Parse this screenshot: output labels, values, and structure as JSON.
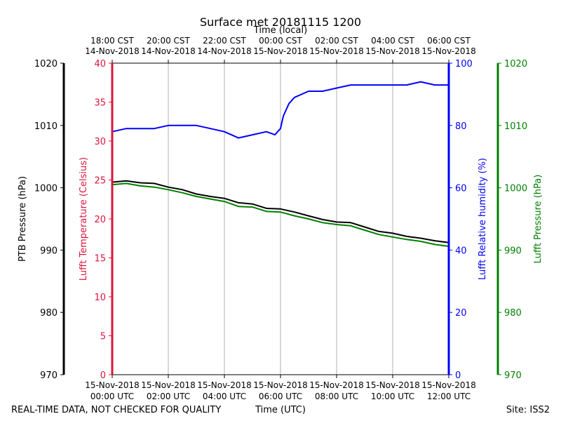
{
  "chart_data": {
    "type": "line",
    "title": "Surface met 20181115 1200",
    "top_axis_label": "Time (local)",
    "xlabel": "Time (UTC)",
    "xlim_hours_utc": [
      0,
      12
    ],
    "bottom_ticks": [
      {
        "hour": 0,
        "date": "15-Nov-2018",
        "time": "00:00 UTC"
      },
      {
        "hour": 2,
        "date": "15-Nov-2018",
        "time": "02:00 UTC"
      },
      {
        "hour": 4,
        "date": "15-Nov-2018",
        "time": "04:00 UTC"
      },
      {
        "hour": 6,
        "date": "15-Nov-2018",
        "time": "06:00 UTC"
      },
      {
        "hour": 8,
        "date": "15-Nov-2018",
        "time": "08:00 UTC"
      },
      {
        "hour": 10,
        "date": "15-Nov-2018",
        "time": "10:00 UTC"
      },
      {
        "hour": 12,
        "date": "15-Nov-2018",
        "time": "12:00 UTC"
      }
    ],
    "top_ticks": [
      {
        "hour": 0,
        "time": "18:00 CST",
        "date": "14-Nov-2018"
      },
      {
        "hour": 2,
        "time": "20:00 CST",
        "date": "14-Nov-2018"
      },
      {
        "hour": 4,
        "time": "22:00 CST",
        "date": "14-Nov-2018"
      },
      {
        "hour": 6,
        "time": "00:00 CST",
        "date": "15-Nov-2018"
      },
      {
        "hour": 8,
        "time": "02:00 CST",
        "date": "15-Nov-2018"
      },
      {
        "hour": 10,
        "time": "04:00 CST",
        "date": "15-Nov-2018"
      },
      {
        "hour": 12,
        "time": "06:00 CST",
        "date": "15-Nov-2018"
      }
    ],
    "axes": {
      "ptb_pressure": {
        "label": "PTB Pressure (hPa)",
        "range": [
          970,
          1020
        ],
        "ticks": [
          970,
          980,
          990,
          1000,
          1010,
          1020
        ],
        "color": "#000000"
      },
      "temperature": {
        "label": "Lufft Temperature (Celsius)",
        "range": [
          0,
          40
        ],
        "ticks": [
          0,
          5,
          10,
          15,
          20,
          25,
          30,
          35,
          40
        ],
        "color": "#dc143c"
      },
      "humidity": {
        "label": "Lufft Relative humidity (%)",
        "range": [
          0,
          100
        ],
        "ticks": [
          0,
          20,
          40,
          60,
          80,
          100
        ],
        "color": "#0000ff"
      },
      "lufft_pressure": {
        "label": "Lufft Pressure (hPa)",
        "range": [
          970,
          1020
        ],
        "ticks": [
          970,
          980,
          990,
          1000,
          1010,
          1020
        ],
        "color": "#008000"
      }
    },
    "grid": "vertical",
    "series": [
      {
        "name": "PTB Pressure",
        "axis": "ptb_pressure",
        "color": "#000000",
        "x": [
          0,
          0.5,
          1,
          1.5,
          2,
          2.5,
          3,
          3.5,
          4,
          4.5,
          5,
          5.5,
          6,
          6.5,
          7,
          7.5,
          8,
          8.5,
          9,
          9.5,
          10,
          10.5,
          11,
          11.5,
          12
        ],
        "y": [
          1000.9,
          1001.1,
          1000.8,
          1000.7,
          1000.1,
          999.7,
          999.0,
          998.6,
          998.3,
          997.6,
          997.4,
          996.7,
          996.6,
          996.1,
          995.5,
          994.9,
          994.5,
          994.4,
          993.7,
          993.0,
          992.7,
          992.2,
          991.9,
          991.5,
          991.2
        ]
      },
      {
        "name": "Lufft Pressure",
        "axis": "lufft_pressure",
        "color": "#008000",
        "x": [
          0,
          0.5,
          1,
          1.5,
          2,
          2.5,
          3,
          3.5,
          4,
          4.5,
          5,
          5.5,
          6,
          6.5,
          7,
          7.5,
          8,
          8.5,
          9,
          9.5,
          10,
          10.5,
          11,
          11.5,
          12
        ],
        "y": [
          1000.5,
          1000.7,
          1000.3,
          1000.1,
          999.7,
          999.2,
          998.6,
          998.2,
          997.8,
          997.0,
          996.9,
          996.2,
          996.1,
          995.5,
          995.0,
          994.4,
          994.1,
          993.9,
          993.2,
          992.5,
          992.1,
          991.7,
          991.4,
          990.9,
          990.6
        ]
      },
      {
        "name": "Lufft Relative humidity",
        "axis": "humidity",
        "color": "#0000ff",
        "x": [
          0,
          0.5,
          1,
          1.5,
          2,
          2.5,
          3,
          3.5,
          4,
          4.5,
          5,
          5.5,
          5.8,
          6,
          6.1,
          6.3,
          6.5,
          7,
          7.5,
          8,
          8.5,
          9,
          9.5,
          10,
          10.5,
          11,
          11.5,
          12
        ],
        "y": [
          78,
          79,
          79,
          79,
          80,
          80,
          80,
          79,
          78,
          76,
          77,
          78,
          77,
          79,
          83,
          87,
          89,
          91,
          91,
          92,
          93,
          93,
          93,
          93,
          93,
          94,
          93,
          93
        ]
      }
    ],
    "footer_left": "REAL-TIME DATA, NOT CHECKED FOR QUALITY",
    "footer_right": "Site: ISS2"
  }
}
